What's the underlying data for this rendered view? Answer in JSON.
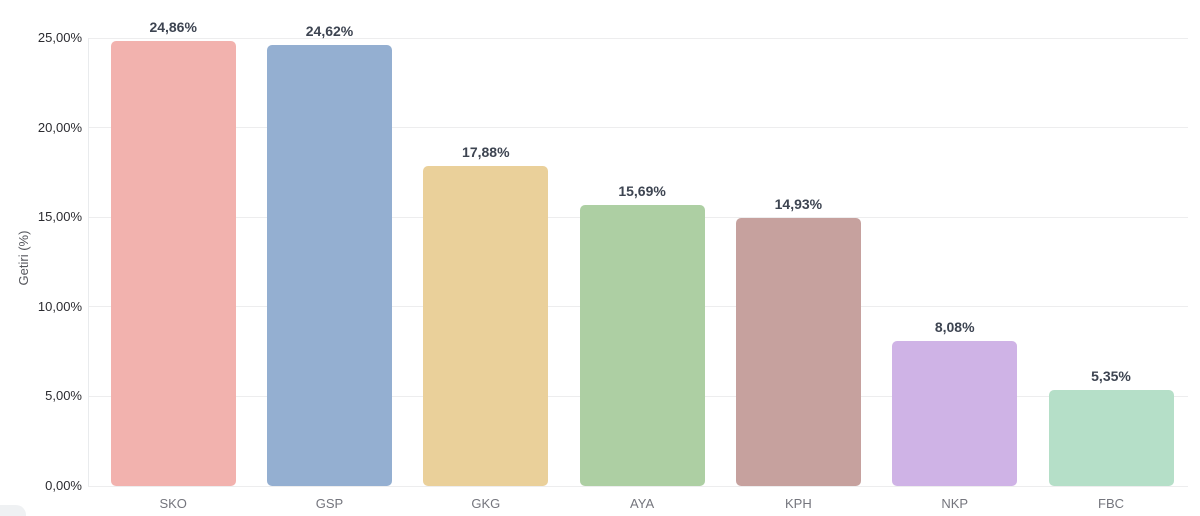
{
  "chart_data": {
    "type": "bar",
    "title": "",
    "xlabel": "",
    "ylabel": "Getiri (%)",
    "categories": [
      "SKO",
      "GSP",
      "GKG",
      "AYA",
      "KPH",
      "NKP",
      "FBC"
    ],
    "values": [
      24.86,
      24.62,
      17.88,
      15.69,
      14.93,
      8.08,
      5.35
    ],
    "value_labels": [
      "24,86%",
      "24,62%",
      "17,88%",
      "15,69%",
      "14,93%",
      "8,08%",
      "5,35%"
    ],
    "bar_colors": [
      "#f2b2ae",
      "#94afd1",
      "#ead09a",
      "#adcfa3",
      "#c6a19e",
      "#cfb3e6",
      "#b5dfc8"
    ],
    "ylim": [
      0,
      25
    ],
    "yticks": [
      0,
      5,
      10,
      15,
      20,
      25
    ],
    "ytick_labels": [
      "0,00%",
      "5,00%",
      "10,00%",
      "15,00%",
      "20,00%",
      "25,00%"
    ],
    "grid": true,
    "legend": false,
    "decimal_separator": ","
  },
  "colors": {
    "background": "#ffffff",
    "gridline": "#ededee",
    "axis_line": "#e9ebed",
    "value_label_text": "#3d4451",
    "ytick_text": "#2b2b30",
    "category_text": "#74757d",
    "axis_title_text": "#55565c"
  }
}
